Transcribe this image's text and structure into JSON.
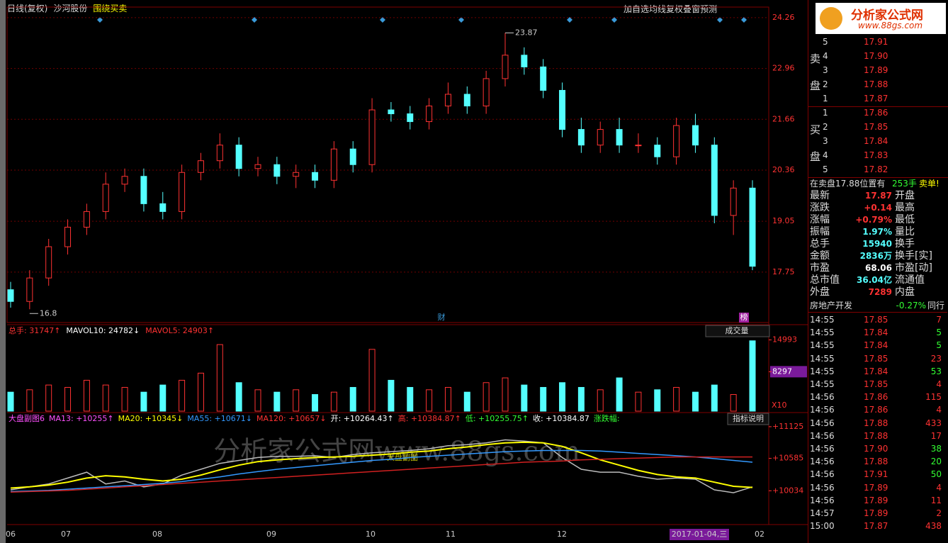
{
  "toolbar": {
    "period": "日线(复权)",
    "stock": "沙河股份",
    "formula": "围绕买卖",
    "buttons": [
      "加自选",
      "均线",
      "复权",
      "叠",
      "窗",
      "预测"
    ]
  },
  "logo": {
    "title": "分析家公式网",
    "url": "www.88gs.com"
  },
  "watermark": {
    "text": "分析家公式网www.88gs.com",
    "sub": "大盘副图"
  },
  "price_chart": {
    "type": "candlestick",
    "open": [
      17.3,
      17.0,
      17.6,
      18.4,
      18.9,
      19.3,
      20.0,
      20.2,
      19.5,
      19.3,
      20.3,
      20.6,
      21.0,
      20.4,
      20.5,
      20.2,
      20.3,
      20.1,
      20.9,
      20.5,
      21.9,
      21.8,
      21.6,
      22.0,
      22.3,
      22.0,
      22.7,
      23.3,
      23.0,
      22.4,
      21.4,
      21.0,
      21.4,
      21.0,
      21.0,
      20.7,
      21.5,
      21.0,
      19.2,
      19.9
    ],
    "high": [
      17.5,
      17.8,
      18.6,
      19.1,
      19.5,
      20.3,
      20.4,
      20.4,
      19.8,
      20.5,
      20.8,
      21.3,
      21.2,
      20.7,
      20.7,
      20.5,
      20.5,
      21.1,
      21.1,
      22.2,
      22.1,
      22.0,
      22.2,
      22.6,
      22.5,
      22.9,
      23.87,
      23.5,
      23.2,
      22.6,
      21.7,
      21.6,
      21.7,
      21.3,
      21.2,
      21.7,
      21.8,
      21.2,
      20.1,
      20.1
    ],
    "low": [
      16.84,
      16.8,
      17.4,
      18.2,
      18.7,
      19.1,
      19.8,
      19.3,
      19.1,
      19.1,
      20.1,
      20.4,
      20.2,
      20.2,
      20.0,
      19.9,
      19.9,
      19.9,
      20.3,
      20.3,
      21.6,
      21.4,
      21.4,
      21.8,
      21.8,
      21.8,
      22.5,
      22.8,
      22.2,
      21.2,
      20.8,
      20.8,
      20.8,
      20.8,
      20.5,
      20.5,
      20.8,
      19.0,
      18.7,
      17.8
    ],
    "close": [
      17.0,
      17.6,
      18.4,
      18.9,
      19.3,
      20.0,
      20.2,
      19.5,
      19.3,
      20.3,
      20.6,
      21.0,
      20.4,
      20.5,
      20.2,
      20.3,
      20.1,
      20.9,
      20.5,
      21.9,
      21.8,
      21.6,
      22.0,
      22.3,
      22.0,
      22.7,
      23.3,
      23.0,
      22.4,
      21.4,
      21.0,
      21.4,
      21.0,
      21.0,
      20.7,
      21.5,
      21.0,
      19.2,
      19.9,
      17.9
    ],
    "ylim": [
      16.46,
      24.53
    ],
    "yticks": [
      24.26,
      22.96,
      21.66,
      20.36,
      19.05,
      17.75
    ],
    "up_color": "#ff3232",
    "down_color": "#54ffff",
    "markers": [
      "财",
      "榜"
    ]
  },
  "volume_chart": {
    "legend": [
      {
        "text": "总手: 31747↑",
        "color": "#ff3232"
      },
      {
        "text": "MAVOL10: 24782↓",
        "color": "#ffffff"
      },
      {
        "text": "MAVOL5: 24903↑",
        "color": "#ff3232"
      }
    ],
    "selector": "成交量",
    "unit": "X10",
    "values": [
      4000,
      4500,
      5500,
      5000,
      6500,
      5500,
      5000,
      4000,
      5500,
      6500,
      8000,
      14000,
      6000,
      4500,
      4000,
      4500,
      3500,
      4000,
      5000,
      13000,
      6500,
      5000,
      4500,
      5000,
      4000,
      6000,
      7000,
      5500,
      5000,
      6000,
      5000,
      4500,
      7000,
      4000,
      4500,
      5000,
      4000,
      5500,
      3500,
      14800
    ],
    "ylim": [
      0,
      17000
    ],
    "yticks": [
      14993,
      8297
    ]
  },
  "index_chart": {
    "button": "指标说明",
    "legend": [
      {
        "text": "大盘副图6",
        "color": "#ff50ff"
      },
      {
        "text": "MA13: +10255↑",
        "color": "#ff50ff"
      },
      {
        "text": "MA20: +10345↓",
        "color": "#ffff00"
      },
      {
        "text": "MA55: +10671↓",
        "color": "#3399ff"
      },
      {
        "text": "MA120: +10657↓",
        "color": "#ff3232"
      },
      {
        "text": "开: +10264.43↑",
        "color": "#ffffff"
      },
      {
        "text": "高: +10384.87↑",
        "color": "#ff3232"
      },
      {
        "text": "低: +10255.75↑",
        "color": "#33ff33"
      },
      {
        "text": "收: +10384.87",
        "color": "#ffffff"
      },
      {
        "text": "涨跌幅:",
        "color": "#33ff33"
      }
    ],
    "series": [
      {
        "name": "收",
        "color": "#bbbbbb",
        "values": [
          10050,
          10100,
          10150,
          10250,
          10350,
          10150,
          10200,
          10100,
          10150,
          10300,
          10400,
          10500,
          10550,
          10600,
          10620,
          10620,
          10630,
          10600,
          10650,
          10680,
          10700,
          10720,
          10750,
          10800,
          10820,
          10850,
          10900,
          10880,
          10850,
          10600,
          10400,
          10350,
          10350,
          10280,
          10230,
          10250,
          10230,
          10050,
          10000,
          10100
        ]
      },
      {
        "name": "MA20",
        "color": "#ffff00",
        "values": [
          10080,
          10100,
          10130,
          10180,
          10250,
          10290,
          10270,
          10230,
          10200,
          10230,
          10300,
          10390,
          10470,
          10530,
          10560,
          10580,
          10600,
          10610,
          10620,
          10640,
          10660,
          10690,
          10710,
          10750,
          10780,
          10820,
          10850,
          10860,
          10850,
          10790,
          10680,
          10560,
          10470,
          10380,
          10310,
          10270,
          10250,
          10180,
          10110,
          10090
        ]
      },
      {
        "name": "MA55",
        "color": "#3399ff",
        "values": [
          10020,
          10030,
          10040,
          10060,
          10080,
          10100,
          10120,
          10140,
          10160,
          10190,
          10230,
          10270,
          10320,
          10360,
          10400,
          10430,
          10460,
          10490,
          10520,
          10550,
          10570,
          10600,
          10620,
          10640,
          10660,
          10680,
          10700,
          10710,
          10720,
          10720,
          10720,
          10710,
          10690,
          10670,
          10650,
          10630,
          10610,
          10580,
          10550,
          10520
        ]
      },
      {
        "name": "MA120",
        "color": "#d02020",
        "values": [
          10010,
          10020,
          10030,
          10040,
          10060,
          10080,
          10100,
          10120,
          10140,
          10160,
          10180,
          10200,
          10220,
          10240,
          10260,
          10280,
          10300,
          10320,
          10340,
          10360,
          10380,
          10400,
          10420,
          10440,
          10460,
          10480,
          10500,
          10520,
          10530,
          10540,
          10560,
          10570,
          10580,
          10590,
          10600,
          10610,
          10610,
          10610,
          10610,
          10610
        ]
      }
    ],
    "ylim": [
      9458,
      11329
    ],
    "yticks": [
      {
        "value": 11125,
        "label": "+11125"
      },
      {
        "value": 10585,
        "label": "+10585"
      },
      {
        "value": 10034,
        "label": "+10034"
      }
    ]
  },
  "x_labels": [
    "06",
    "07",
    "08",
    "09",
    "10",
    "11",
    "12",
    "2017-01-04,三",
    "02"
  ],
  "sidebar": {
    "sell_label": [
      "卖",
      "盘"
    ],
    "buy_label": [
      "买",
      "盘"
    ],
    "sell": [
      {
        "level": "5",
        "price": "17.91"
      },
      {
        "level": "4",
        "price": "17.90"
      },
      {
        "level": "3",
        "price": "17.89"
      },
      {
        "level": "2",
        "price": "17.88"
      },
      {
        "level": "1",
        "price": "17.87"
      }
    ],
    "buy": [
      {
        "level": "1",
        "price": "17.86"
      },
      {
        "level": "2",
        "price": "17.85"
      },
      {
        "level": "3",
        "price": "17.84"
      },
      {
        "level": "4",
        "price": "17.83"
      },
      {
        "level": "5",
        "price": "17.82"
      }
    ],
    "notice": [
      "在卖盘17.88位置有",
      "253手",
      "卖单!"
    ],
    "quotes": [
      {
        "label": "最新",
        "value": "17.87",
        "color": "#ff3232",
        "label2": "开盘"
      },
      {
        "label": "涨跌",
        "value": "+0.14",
        "color": "#ff3232",
        "label2": "最高"
      },
      {
        "label": "涨幅",
        "value": "+0.79%",
        "color": "#ff3232",
        "label2": "最低"
      },
      {
        "label": "振幅",
        "value": "1.97%",
        "color": "#54ffff",
        "label2": "量比"
      },
      {
        "label": "总手",
        "value": "15940",
        "color": "#54ffff",
        "label2": "换手"
      },
      {
        "label": "金额",
        "value": "2836万",
        "color": "#54ffff",
        "label2": "换手[实]"
      },
      {
        "label": "市盈",
        "value": "68.06",
        "color": "#ffffff",
        "label2": "市盈[动]"
      },
      {
        "label": "总市值",
        "value": "36.04亿",
        "color": "#54ffff",
        "label2": "流通值"
      },
      {
        "label": "外盘",
        "value": "7289",
        "color": "#ff3232",
        "label2": "内盘"
      }
    ],
    "sector": {
      "name": "房地产开发",
      "change": "-0.27%",
      "link": "同行"
    },
    "trades": [
      {
        "time": "14:55",
        "price": "17.85",
        "volume": "7",
        "vcolor": "#ff3232"
      },
      {
        "time": "14:55",
        "price": "17.84",
        "volume": "5",
        "vcolor": "#33ff33"
      },
      {
        "time": "14:55",
        "price": "17.84",
        "volume": "5",
        "vcolor": "#33ff33"
      },
      {
        "time": "14:55",
        "price": "17.85",
        "volume": "23",
        "vcolor": "#ff3232"
      },
      {
        "time": "14:55",
        "price": "17.84",
        "volume": "53",
        "vcolor": "#33ff33"
      },
      {
        "time": "14:55",
        "price": "17.85",
        "volume": "4",
        "vcolor": "#ff3232"
      },
      {
        "time": "14:56",
        "price": "17.86",
        "volume": "115",
        "vcolor": "#ff3232"
      },
      {
        "time": "14:56",
        "price": "17.86",
        "volume": "4",
        "vcolor": "#ff3232"
      },
      {
        "time": "14:56",
        "price": "17.88",
        "volume": "433",
        "vcolor": "#ff3232"
      },
      {
        "time": "14:56",
        "price": "17.88",
        "volume": "17",
        "vcolor": "#ff3232"
      },
      {
        "time": "14:56",
        "price": "17.90",
        "volume": "38",
        "vcolor": "#33ff33"
      },
      {
        "time": "14:56",
        "price": "17.88",
        "volume": "20",
        "vcolor": "#33ff33"
      },
      {
        "time": "14:56",
        "price": "17.91",
        "volume": "50",
        "vcolor": "#33ff33"
      },
      {
        "time": "14:56",
        "price": "17.89",
        "volume": "4",
        "vcolor": "#ff3232"
      },
      {
        "time": "14:56",
        "price": "17.89",
        "volume": "11",
        "vcolor": "#ff3232"
      },
      {
        "time": "14:57",
        "price": "17.89",
        "volume": "2",
        "vcolor": "#ff3232"
      },
      {
        "time": "15:00",
        "price": "17.87",
        "volume": "438",
        "vcolor": "#ff3232"
      }
    ]
  }
}
